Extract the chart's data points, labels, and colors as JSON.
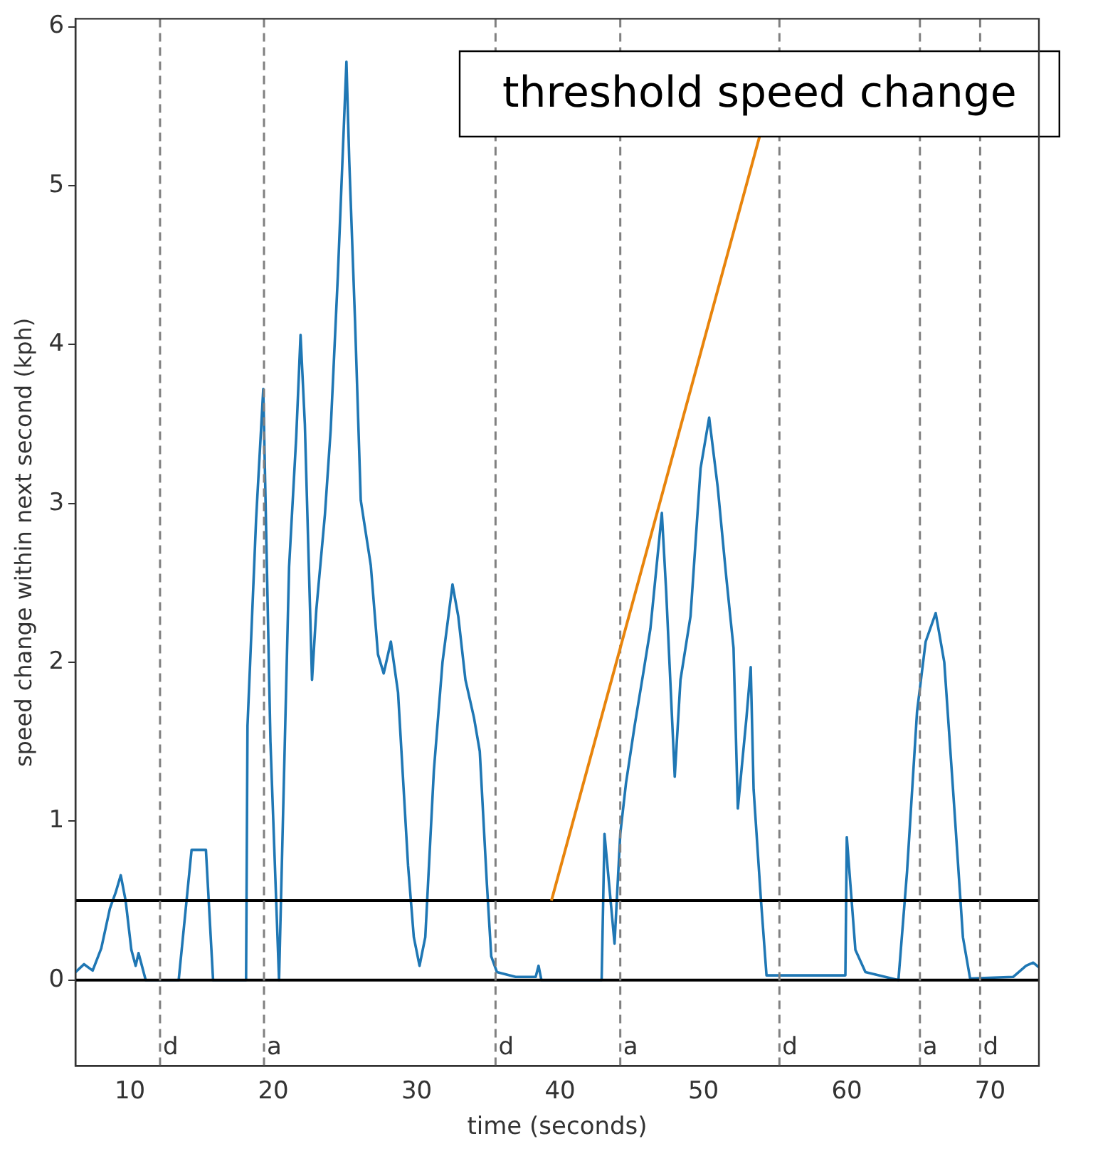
{
  "chart_data": {
    "type": "line",
    "xlabel": "time (seconds)",
    "ylabel": "speed change within next second (kph)",
    "xlim": [
      6.2,
      73.4
    ],
    "ylim": [
      -0.54,
      6.05
    ],
    "xticks": [
      10,
      20,
      30,
      40,
      50,
      60,
      70
    ],
    "yticks": [
      0,
      1,
      2,
      3,
      4,
      5,
      6
    ],
    "grid": false,
    "legend": false,
    "marker": "none",
    "line_style": "solid",
    "series": [
      {
        "color": "#1f77b4",
        "x": [
          6.2,
          6.8,
          7.4,
          8.0,
          8.6,
          9.0,
          9.36,
          9.7,
          10.1,
          10.4,
          10.6,
          11.1,
          13.4,
          14.3,
          15.3,
          15.8,
          18.1,
          18.2,
          18.8,
          19.3,
          19.8,
          20.4,
          21.1,
          21.6,
          21.9,
          22.2,
          22.7,
          23.0,
          23.6,
          24.0,
          24.5,
          25.1,
          25.3,
          25.7,
          26.1,
          26.8,
          27.3,
          27.7,
          28.2,
          28.7,
          29.4,
          29.8,
          30.2,
          30.6,
          31.2,
          31.8,
          32.5,
          32.9,
          33.4,
          34.0,
          34.4,
          34.9,
          35.2,
          35.6,
          36.9,
          38.3,
          38.5,
          38.7,
          42.9,
          43.1,
          43.8,
          44.2,
          44.6,
          45.2,
          45.8,
          46.3,
          47.1,
          47.4,
          48.0,
          48.4,
          49.1,
          49.8,
          50.4,
          51.0,
          51.6,
          52.1,
          52.4,
          53.0,
          53.3,
          53.5,
          54.0,
          54.4,
          59.9,
          60.0,
          60.6,
          61.3,
          63.6,
          64.2,
          64.9,
          65.5,
          66.2,
          66.8,
          67.5,
          68.1,
          68.6,
          71.6,
          72.5,
          73.0,
          73.4
        ],
        "values": [
          0.05,
          0.1,
          0.06,
          0.2,
          0.45,
          0.55,
          0.66,
          0.5,
          0.19,
          0.09,
          0.17,
          0,
          0,
          0.82,
          0.82,
          0,
          0,
          1.6,
          2.9,
          3.72,
          1.5,
          0,
          2.6,
          3.42,
          4.06,
          3.5,
          1.89,
          2.33,
          2.93,
          3.46,
          4.43,
          5.78,
          5.15,
          4.15,
          3.02,
          2.61,
          2.05,
          1.93,
          2.13,
          1.81,
          0.72,
          0.27,
          0.09,
          0.27,
          1.32,
          2.0,
          2.49,
          2.29,
          1.89,
          1.65,
          1.44,
          0.6,
          0.15,
          0.05,
          0.02,
          0.02,
          0.09,
          0,
          0,
          0.92,
          0.23,
          0.92,
          1.24,
          1.6,
          1.93,
          2.21,
          2.94,
          2.45,
          1.28,
          1.89,
          2.29,
          3.22,
          3.54,
          3.1,
          2.53,
          2.09,
          1.08,
          1.65,
          1.97,
          1.2,
          0.52,
          0.03,
          0.03,
          0.9,
          0.19,
          0.05,
          0,
          0.68,
          1.69,
          2.13,
          2.31,
          2.0,
          1.08,
          0.27,
          0.01,
          0.02,
          0.09,
          0.11,
          0.08
        ]
      }
    ],
    "ref_lines": [
      {
        "axis": "y",
        "value": 0,
        "color": "#000000",
        "line_style": "solid"
      },
      {
        "axis": "y",
        "value": 0.5,
        "color": "#000000",
        "line_style": "solid"
      },
      {
        "axis": "x",
        "value": 12.1,
        "label": "d",
        "color": "#808080",
        "line_style": "dashed"
      },
      {
        "axis": "x",
        "value": 19.35,
        "label": "a",
        "color": "#808080",
        "line_style": "dashed"
      },
      {
        "axis": "x",
        "value": 35.5,
        "label": "d",
        "color": "#808080",
        "line_style": "dashed"
      },
      {
        "axis": "x",
        "value": 44.2,
        "label": "a",
        "color": "#808080",
        "line_style": "dashed"
      },
      {
        "axis": "x",
        "value": 55.3,
        "label": "d",
        "color": "#808080",
        "line_style": "dashed"
      },
      {
        "axis": "x",
        "value": 65.1,
        "label": "a",
        "color": "#808080",
        "line_style": "dashed"
      },
      {
        "axis": "x",
        "value": 69.3,
        "label": "d",
        "color": "#808080",
        "line_style": "dashed"
      }
    ],
    "annotations": [
      {
        "text": "threshold speed change",
        "x": 39.4,
        "y": 0.5
      }
    ]
  }
}
